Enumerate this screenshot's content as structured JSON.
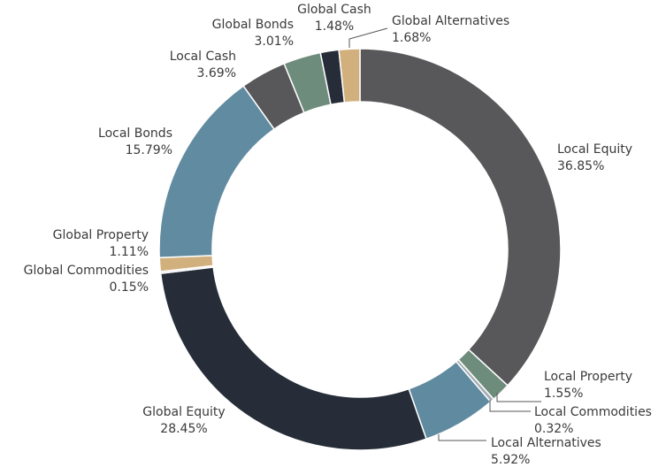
{
  "chart_data": {
    "type": "donut",
    "categories": [
      "Local Equity",
      "Local Property",
      "Local Commodities",
      "Local Alternatives",
      "Global Equity",
      "Global Commodities",
      "Global Property",
      "Local Bonds",
      "Local Cash",
      "Global Bonds",
      "Global Cash",
      "Global Alternatives"
    ],
    "values": [
      36.85,
      1.55,
      0.32,
      5.92,
      28.45,
      0.15,
      1.11,
      15.79,
      3.69,
      3.01,
      1.48,
      1.68
    ],
    "value_labels": [
      "36.85%",
      "1.55%",
      "0.32%",
      "5.92%",
      "28.45%",
      "0.15%",
      "1.11%",
      "15.79%",
      "3.69%",
      "3.01%",
      "1.48%",
      "1.68%"
    ],
    "colors": [
      "#58585a",
      "#6e8c7c",
      "#a3adb3",
      "#5f8aa0",
      "#262d38",
      "#cfcfcf",
      "#d2b07e",
      "#618ba1",
      "#58585a",
      "#6e8c7c",
      "#262d38",
      "#d2b07e"
    ]
  }
}
